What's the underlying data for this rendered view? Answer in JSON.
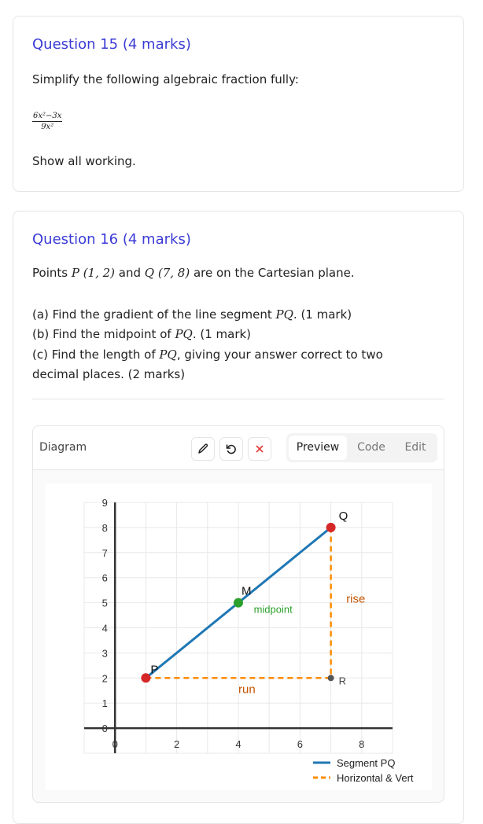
{
  "q15": {
    "title": "Question 15 (4 marks)",
    "prompt": "Simplify the following algebraic fraction fully:",
    "numerator": "6x²−3x",
    "denominator": "9x²",
    "instruction": "Show all working."
  },
  "q16": {
    "title": "Question 16 (4 marks)",
    "intro_a": "Points ",
    "P": "P (1, 2)",
    "and": " and ",
    "Q": "Q (7, 8)",
    "intro_b": " are on the Cartesian plane.",
    "parts": [
      {
        "pre": "(a) Find the gradient of the line segment ",
        "math": "PQ",
        "post": ". (1 mark)"
      },
      {
        "pre": "(b) Find the midpoint of ",
        "math": "PQ",
        "post": ". (1 mark)"
      },
      {
        "pre": "(c) Find the length of ",
        "math": "PQ",
        "post": ", giving your answer correct to two"
      }
    ],
    "part_c_cont": "decimal places. (2 marks)"
  },
  "diagram": {
    "label": "Diagram",
    "edit_icon": "pencil-icon",
    "reset_icon": "rotate-ccw-icon",
    "delete_icon": "x-icon",
    "delete_color": "#e53935",
    "tabs": [
      {
        "label": "Preview",
        "active": true
      },
      {
        "label": "Code",
        "active": false
      },
      {
        "label": "Edit",
        "active": false
      }
    ]
  },
  "chart_data": {
    "type": "line",
    "xlim": [
      -1,
      9
    ],
    "ylim": [
      -1,
      9
    ],
    "grid": true,
    "xticks": [
      0,
      2,
      4,
      6,
      8
    ],
    "yticks": [
      0,
      1,
      2,
      3,
      4,
      5,
      6,
      7,
      8,
      9
    ],
    "points": [
      {
        "label": "P",
        "x": 1,
        "y": 2,
        "color": "#d62728"
      },
      {
        "label": "Q",
        "x": 7,
        "y": 8,
        "color": "#d62728"
      },
      {
        "label": "M",
        "x": 4,
        "y": 5,
        "color": "#2ca02c"
      },
      {
        "label": "R",
        "x": 7,
        "y": 2,
        "color": "#555555"
      }
    ],
    "series": [
      {
        "name": "Segment PQ",
        "x": [
          1,
          7
        ],
        "y": [
          2,
          8
        ],
        "color": "#1f77b4",
        "style": "solid"
      },
      {
        "name": "Horizontal & Vert",
        "x": [
          1,
          7,
          7
        ],
        "y": [
          2,
          2,
          8
        ],
        "color": "#ff8c00",
        "style": "dashed"
      }
    ],
    "annotations": [
      {
        "text": "midpoint",
        "x": 4.5,
        "y": 4.6,
        "color": "#2ca02c"
      },
      {
        "text": "rise",
        "x": 7.5,
        "y": 5,
        "color": "#c45500"
      },
      {
        "text": "run",
        "x": 4,
        "y": 1.4,
        "color": "#c45500"
      }
    ],
    "legend": "bottom-right"
  }
}
